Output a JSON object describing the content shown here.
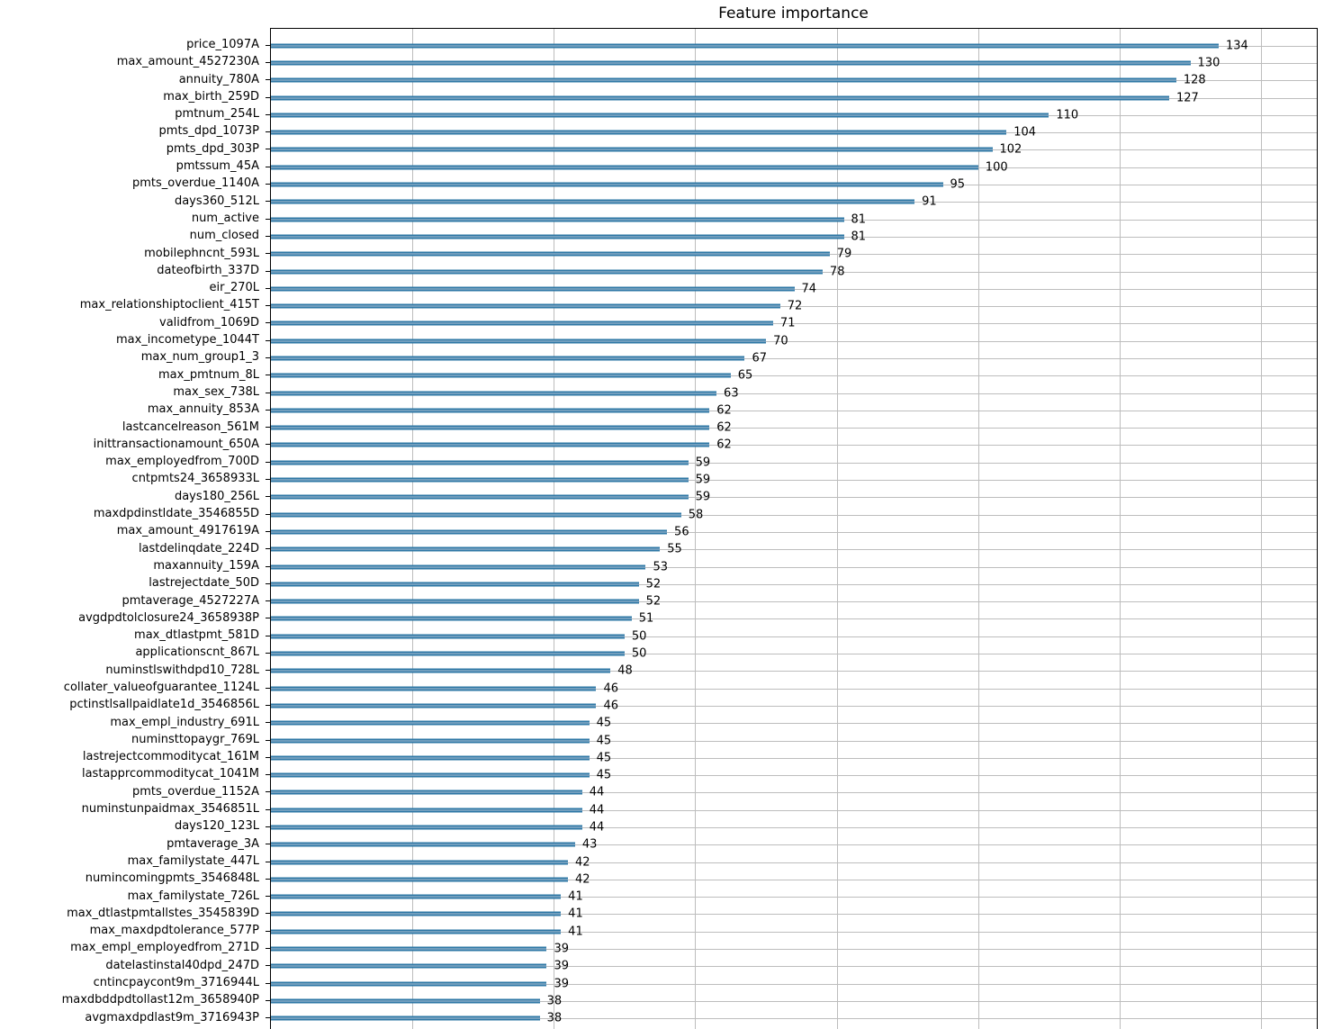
{
  "chart_data": {
    "type": "bar",
    "orientation": "horizontal",
    "title": "Feature importance",
    "xlabel": "",
    "ylabel": "",
    "xlim": [
      0,
      148
    ],
    "xticks": [
      0,
      20,
      40,
      60,
      80,
      100,
      120,
      140
    ],
    "grid": true,
    "value_labels_shown": true,
    "categories": [
      "price_1097A",
      "max_amount_4527230A",
      "annuity_780A",
      "max_birth_259D",
      "pmtnum_254L",
      "pmts_dpd_1073P",
      "pmts_dpd_303P",
      "pmtssum_45A",
      "pmts_overdue_1140A",
      "days360_512L",
      "num_active",
      "num_closed",
      "mobilephncnt_593L",
      "dateofbirth_337D",
      "eir_270L",
      "max_relationshiptoclient_415T",
      "validfrom_1069D",
      "max_incometype_1044T",
      "max_num_group1_3",
      "max_pmtnum_8L",
      "max_sex_738L",
      "max_annuity_853A",
      "lastcancelreason_561M",
      "inittransactionamount_650A",
      "max_employedfrom_700D",
      "cntpmts24_3658933L",
      "days180_256L",
      "maxdpdinstldate_3546855D",
      "max_amount_4917619A",
      "lastdelinqdate_224D",
      "maxannuity_159A",
      "lastrejectdate_50D",
      "pmtaverage_4527227A",
      "avgdpdtolclosure24_3658938P",
      "max_dtlastpmt_581D",
      "applicationscnt_867L",
      "numinstlswithdpd10_728L",
      "collater_valueofguarantee_1124L",
      "pctinstlsallpaidlate1d_3546856L",
      "max_empl_industry_691L",
      "numinsttopaygr_769L",
      "lastrejectcommoditycat_161M",
      "lastapprcommoditycat_1041M",
      "pmts_overdue_1152A",
      "numinstunpaidmax_3546851L",
      "days120_123L",
      "pmtaverage_3A",
      "max_familystate_447L",
      "numincomingpmts_3546848L",
      "max_familystate_726L",
      "max_dtlastpmtallstes_3545839D",
      "max_maxdpdtolerance_577P",
      "max_empl_employedfrom_271D",
      "datelastinstal40dpd_247D",
      "cntincpaycont9m_3716944L",
      "maxdbddpdtollast12m_3658940P",
      "avgmaxdpdlast9m_3716943P"
    ],
    "values": [
      134,
      130,
      128,
      127,
      110,
      104,
      102,
      100,
      95,
      91,
      81,
      81,
      79,
      78,
      74,
      72,
      71,
      70,
      67,
      65,
      63,
      62,
      62,
      62,
      59,
      59,
      59,
      58,
      56,
      55,
      53,
      52,
      52,
      51,
      50,
      50,
      48,
      46,
      46,
      45,
      45,
      45,
      45,
      44,
      44,
      44,
      43,
      42,
      42,
      41,
      41,
      41,
      39,
      39,
      39,
      38,
      38
    ],
    "colors": {
      "bar": "#2f78a6",
      "bar_highlight": "#8fb0c8",
      "grid": "#bdbdbd",
      "spine": "#000000",
      "text": "#000000"
    }
  }
}
